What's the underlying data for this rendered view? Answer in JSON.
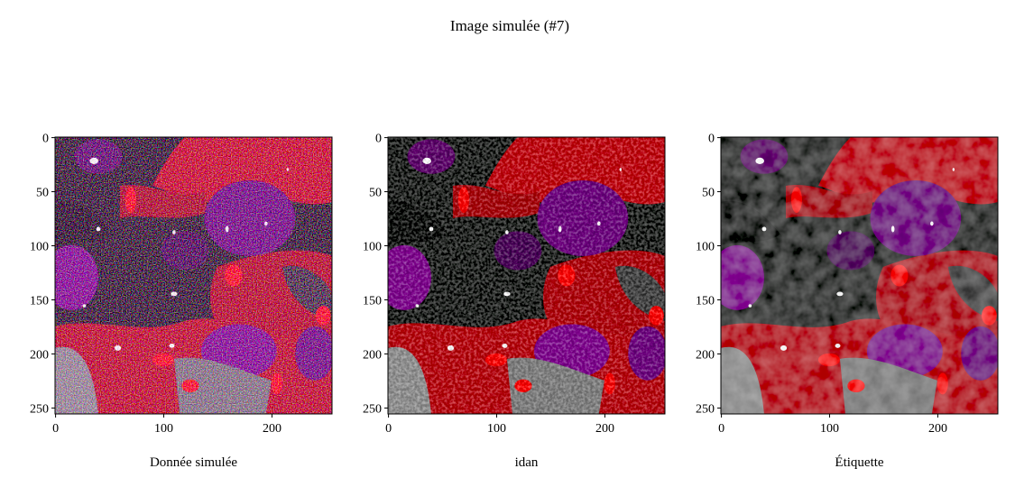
{
  "title": "Image simulée (#7)",
  "chart_data": [
    {
      "type": "image",
      "xlabel": "Donnée simulée",
      "xlim": [
        -0.5,
        255.5
      ],
      "ylim": [
        255.5,
        -0.5
      ],
      "xticks": [
        0,
        100,
        200
      ],
      "yticks": [
        0,
        50,
        100,
        150,
        200,
        250
      ]
    },
    {
      "type": "image",
      "xlabel": "idan",
      "xlim": [
        -0.5,
        255.5
      ],
      "ylim": [
        255.5,
        -0.5
      ],
      "xticks": [
        0,
        100,
        200
      ],
      "yticks": [
        0,
        50,
        100,
        150,
        200,
        250
      ]
    },
    {
      "type": "image",
      "xlabel": "Étiquette",
      "xlim": [
        -0.5,
        255.5
      ],
      "ylim": [
        255.5,
        -0.5
      ],
      "xticks": [
        0,
        100,
        200
      ],
      "yticks": [
        0,
        50,
        100,
        150,
        200,
        250
      ]
    }
  ]
}
